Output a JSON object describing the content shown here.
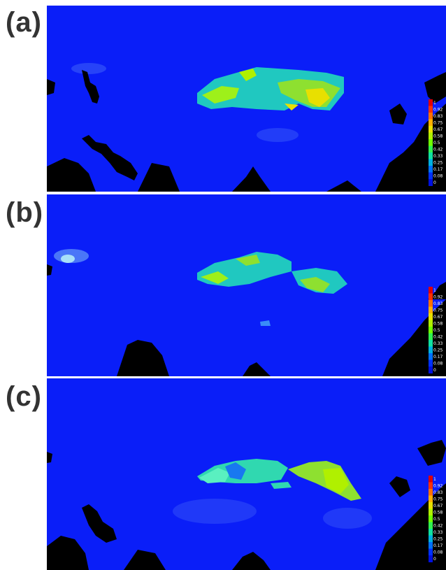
{
  "panels": [
    {
      "label": "(a)",
      "id": "a"
    },
    {
      "label": "(b)",
      "id": "b"
    },
    {
      "label": "(c)",
      "id": "c"
    }
  ],
  "legend": {
    "ticks": [
      "1",
      "0.92",
      "0.83",
      "0.75",
      "0.67",
      "0.58",
      "0.5",
      "0.42",
      "0.33",
      "0.25",
      "0.17",
      "0.08",
      "0"
    ],
    "colors": [
      "#e00000",
      "#ff3000",
      "#ff7000",
      "#ffb000",
      "#e8e000",
      "#b0f000",
      "#70ff00",
      "#30f050",
      "#10e0a0",
      "#00b0e0",
      "#0070ff",
      "#0030ff",
      "#0010e0"
    ]
  },
  "colors": {
    "background": "#0a1ef8",
    "land_mask": "#000000"
  }
}
